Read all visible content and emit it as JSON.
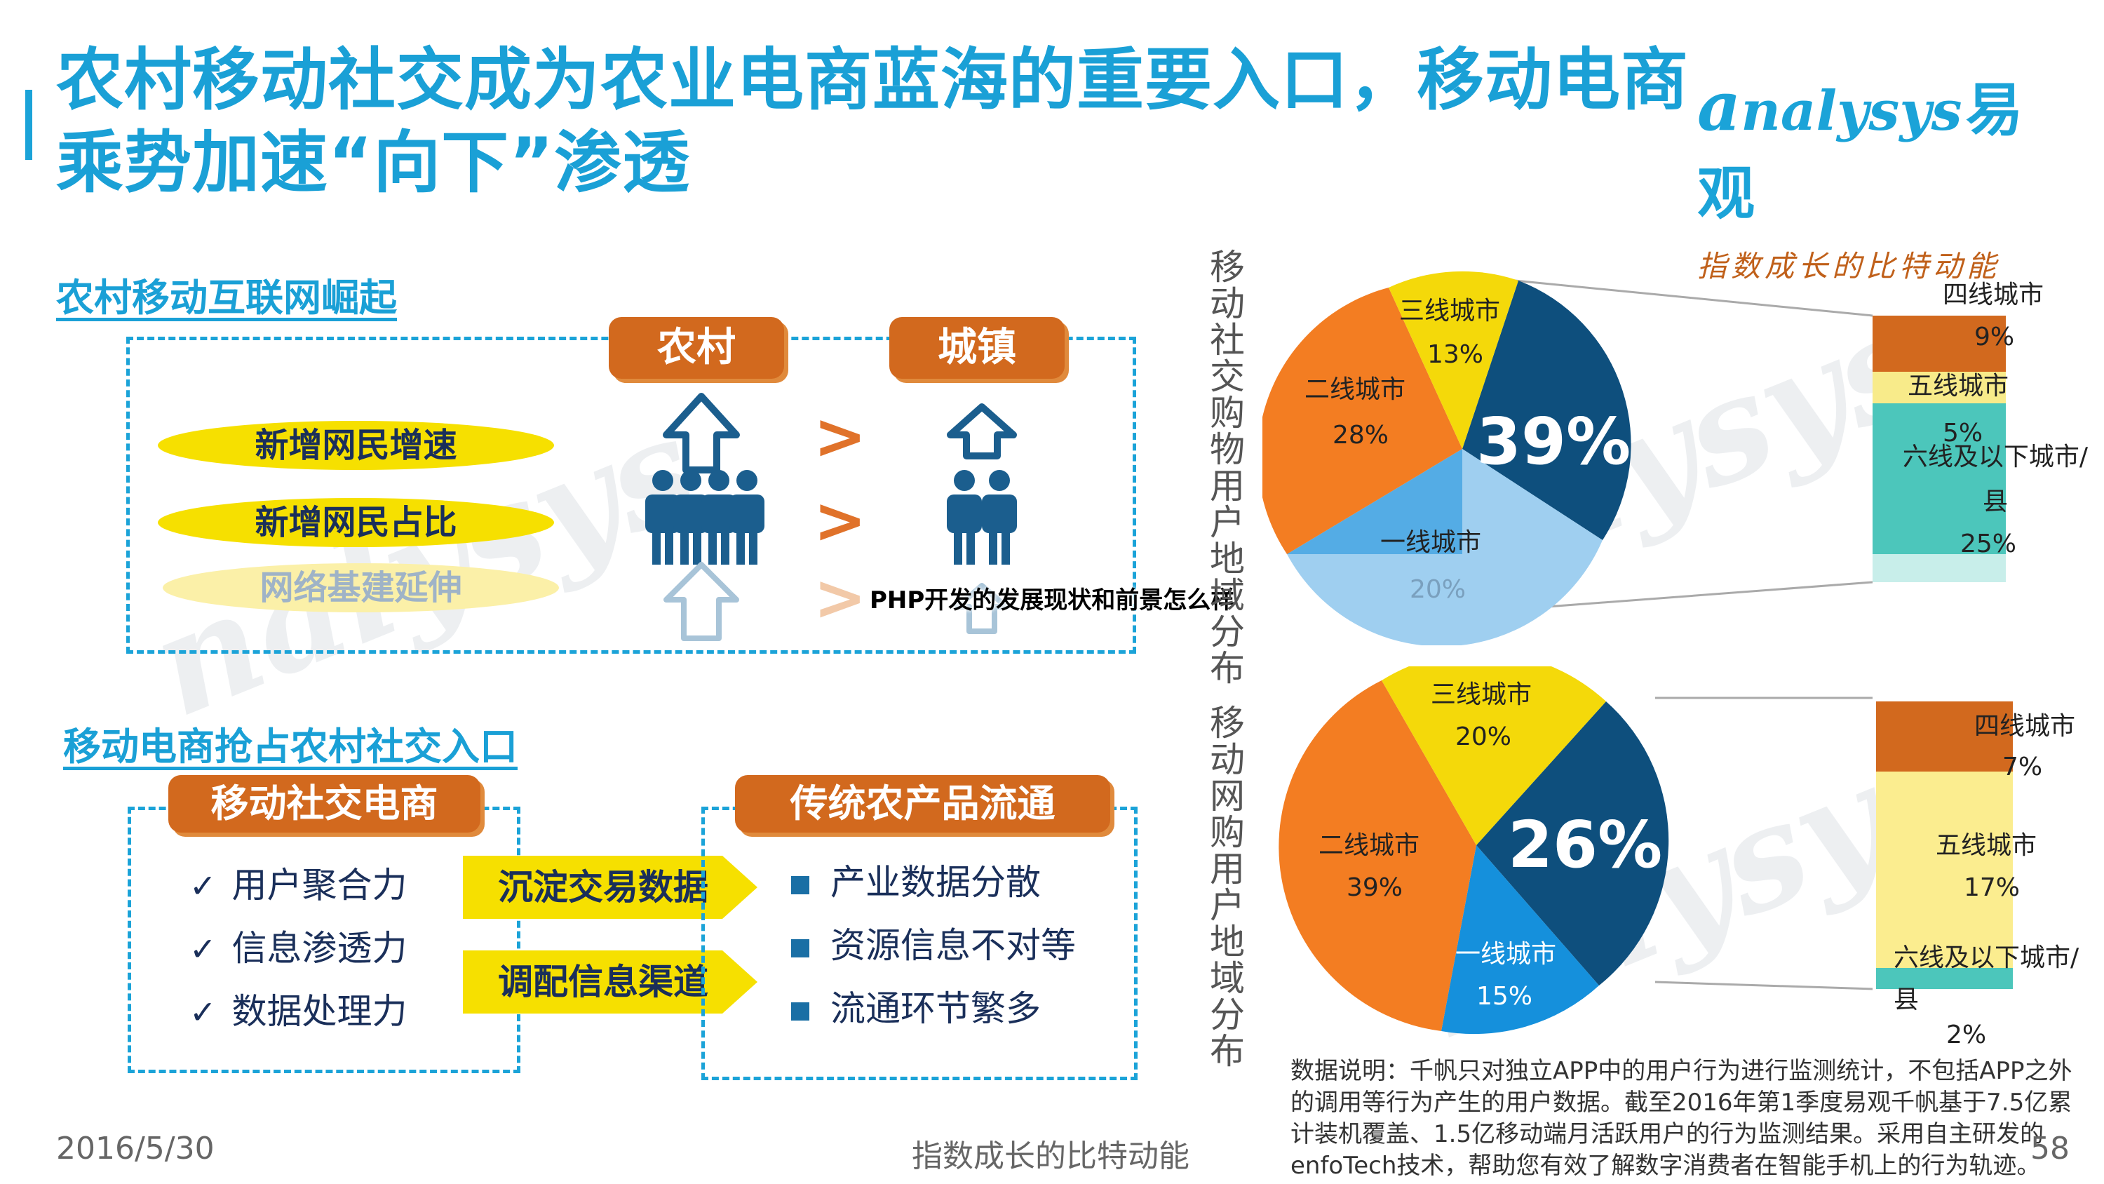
{
  "title": "农村移动社交成为农业电商蓝海的重要入口，移动电商乘势加速“向下”渗透",
  "logo": {
    "main": "nalysys",
    "cn": "易观",
    "slogan": "指数成长的比特动能"
  },
  "section1": {
    "heading": "农村移动互联网崛起",
    "rural": "农村",
    "town": "城镇",
    "rows": [
      "新增网民增速",
      "新增网民占比",
      "网络基建延伸"
    ],
    "gt": ">"
  },
  "section2": {
    "heading": "移动电商抢占农村社交入口",
    "social_box": "移动社交电商",
    "social_items": [
      "用户聚合力",
      "信息渗透力",
      "数据处理力"
    ],
    "check": "✓",
    "arrow1": "沉淀交易数据",
    "arrow2": "调配信息渠道",
    "trad_box": "传统农产品流通",
    "trad_items": [
      "产业数据分散",
      "资源信息不对等",
      "流通环节繁多"
    ]
  },
  "overlay_text": "PHP开发的发展现状和前景怎么样",
  "vertical1": "移动社交购物用户地域分布",
  "vertical2": "移动网购用户地域分布",
  "chart_data": [
    {
      "type": "pie",
      "title": "移动社交购物用户地域分布",
      "slices": [
        {
          "name": "一线城市",
          "label": "39%",
          "value": 39,
          "color": "#0e4f7d"
        },
        {
          "name": "一线城市",
          "label": "20%",
          "value": 20,
          "color": "#9fcff0"
        },
        {
          "name": "二线城市",
          "label": "28%",
          "value": 28,
          "color": "#f37d22"
        },
        {
          "name": "三线城市",
          "label": "13%",
          "value": 13,
          "color": "#f4d90a"
        }
      ],
      "breakdown": [
        {
          "name": "四线城市",
          "label": "9%",
          "value": 9,
          "color": "#d2691e"
        },
        {
          "name": "五线城市",
          "label": "5%",
          "value": 5,
          "color": "#f8eb8a"
        },
        {
          "name": "六线及以下城市/县",
          "label": "25%",
          "value": 25,
          "color": "#4cc6bb"
        }
      ]
    },
    {
      "type": "pie",
      "title": "移动网购用户地域分布",
      "slices": [
        {
          "name": "",
          "label": "26%",
          "value": 26,
          "color": "#0e4f7d"
        },
        {
          "name": "一线城市",
          "label": "15%",
          "value": 15,
          "color": "#1590dc"
        },
        {
          "name": "二线城市",
          "label": "39%",
          "value": 39,
          "color": "#f37d22"
        },
        {
          "name": "三线城市",
          "label": "20%",
          "value": 20,
          "color": "#f4d90a"
        }
      ],
      "breakdown": [
        {
          "name": "四线城市",
          "label": "7%",
          "value": 7,
          "color": "#d2691e"
        },
        {
          "name": "五线城市",
          "label": "17%",
          "value": 17,
          "color": "#fbed8f"
        },
        {
          "name": "六线及以下城市/县",
          "label": "2%",
          "value": 2,
          "color": "#4cc6bb"
        }
      ]
    }
  ],
  "note": "数据说明：千帆只对独立APP中的用户行为进行监测统计，不包括APP之外的调用等行为产生的用户数据。截至2016年第1季度易观千帆基于7.5亿累计装机覆盖、1.5亿移动端月活跃用户的行为监测结果。采用自主研发的enfoTech技术，帮助您有效了解数字消费者在智能手机上的行为轨迹。",
  "footer": {
    "date": "2016/5/30",
    "slogan": "指数成长的比特动能",
    "page": "58"
  },
  "watermark": "nalysys"
}
